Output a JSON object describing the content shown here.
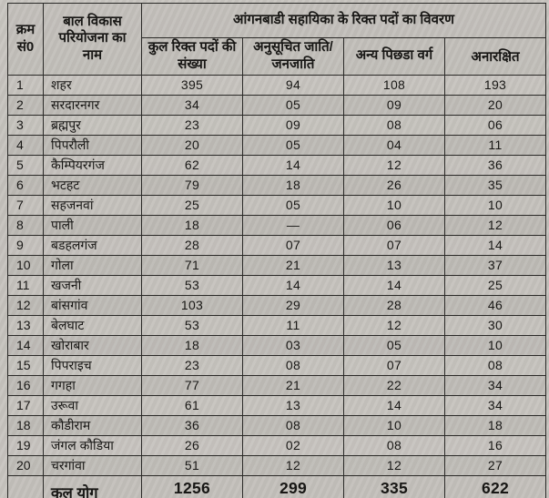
{
  "table": {
    "title": "आंगनबाडी सहायिका के रिक्त पदों का विवरण",
    "columns": {
      "serial": "क्रम सं0",
      "project_name": "बाल विकास परियोजना का नाम",
      "total_vacant": "कुल रिक्त पदों की संख्या",
      "sc_st": "अनुसूचित जाति/जनजाति",
      "obc": "अन्य पिछडा वर्ग",
      "unreserved": "अनारक्षित"
    },
    "rows": [
      {
        "sno": "1",
        "name": "शहर",
        "total": "395",
        "sc_st": "94",
        "obc": "108",
        "unreserved": "193"
      },
      {
        "sno": "2",
        "name": "सरदारनगर",
        "total": "34",
        "sc_st": "05",
        "obc": "09",
        "unreserved": "20"
      },
      {
        "sno": "3",
        "name": "ब्रह्मपुर",
        "total": "23",
        "sc_st": "09",
        "obc": "08",
        "unreserved": "06"
      },
      {
        "sno": "4",
        "name": "पिपरौली",
        "total": "20",
        "sc_st": "05",
        "obc": "04",
        "unreserved": "11"
      },
      {
        "sno": "5",
        "name": "कैम्पियरगंज",
        "total": "62",
        "sc_st": "14",
        "obc": "12",
        "unreserved": "36"
      },
      {
        "sno": "6",
        "name": "भटहट",
        "total": "79",
        "sc_st": "18",
        "obc": "26",
        "unreserved": "35"
      },
      {
        "sno": "7",
        "name": "सहजनवां",
        "total": "25",
        "sc_st": "05",
        "obc": "10",
        "unreserved": "10"
      },
      {
        "sno": "8",
        "name": "पाली",
        "total": "18",
        "sc_st": "—",
        "obc": "06",
        "unreserved": "12"
      },
      {
        "sno": "9",
        "name": "बडहलगंज",
        "total": "28",
        "sc_st": "07",
        "obc": "07",
        "unreserved": "14"
      },
      {
        "sno": "10",
        "name": "गोला",
        "total": "71",
        "sc_st": "21",
        "obc": "13",
        "unreserved": "37"
      },
      {
        "sno": "11",
        "name": "खजनी",
        "total": "53",
        "sc_st": "14",
        "obc": "14",
        "unreserved": "25"
      },
      {
        "sno": "12",
        "name": "बांसगांव",
        "total": "103",
        "sc_st": "29",
        "obc": "28",
        "unreserved": "46"
      },
      {
        "sno": "13",
        "name": "बेलघाट",
        "total": "53",
        "sc_st": "11",
        "obc": "12",
        "unreserved": "30"
      },
      {
        "sno": "14",
        "name": "खोराबार",
        "total": "18",
        "sc_st": "03",
        "obc": "05",
        "unreserved": "10"
      },
      {
        "sno": "15",
        "name": "पिपराइच",
        "total": "23",
        "sc_st": "08",
        "obc": "07",
        "unreserved": "08"
      },
      {
        "sno": "16",
        "name": "गगहा",
        "total": "77",
        "sc_st": "21",
        "obc": "22",
        "unreserved": "34"
      },
      {
        "sno": "17",
        "name": "उरूवा",
        "total": "61",
        "sc_st": "13",
        "obc": "14",
        "unreserved": "34"
      },
      {
        "sno": "18",
        "name": "कौडीराम",
        "total": "36",
        "sc_st": "08",
        "obc": "10",
        "unreserved": "18"
      },
      {
        "sno": "19",
        "name": "जंगल कौडिया",
        "total": "26",
        "sc_st": "02",
        "obc": "08",
        "unreserved": "16"
      },
      {
        "sno": "20",
        "name": "चरगांवा",
        "total": "51",
        "sc_st": "12",
        "obc": "12",
        "unreserved": "27"
      }
    ],
    "total_row": {
      "label": "कुल योग",
      "total": "1256",
      "sc_st": "299",
      "obc": "335",
      "unreserved": "622"
    }
  }
}
